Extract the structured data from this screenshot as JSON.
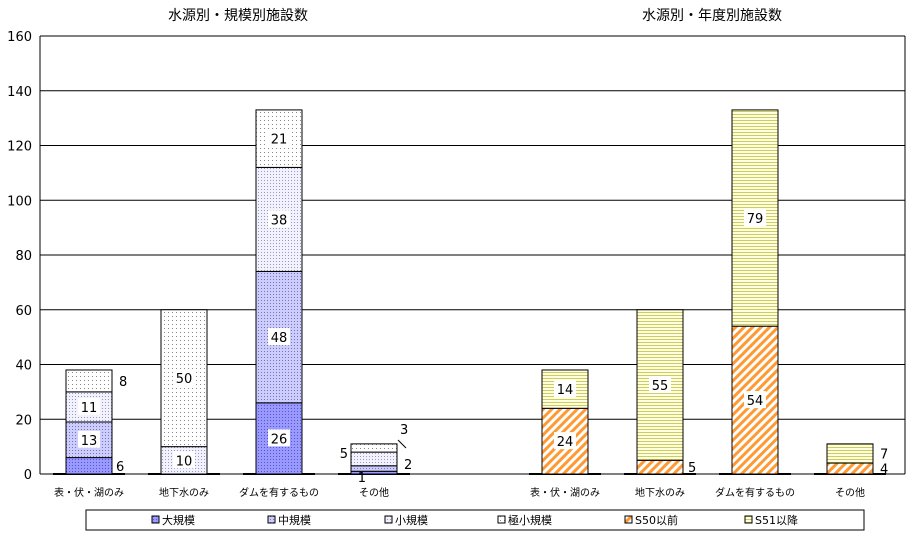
{
  "chart_data": [
    {
      "type": "bar",
      "stacked": true,
      "title": "水源別・規模別施設数",
      "categories": [
        "表・伏・湖のみ",
        "地下水のみ",
        "ダムを有するもの",
        "その他"
      ],
      "series": [
        {
          "name": "大規模",
          "values": [
            6,
            0,
            26,
            1
          ]
        },
        {
          "name": "中規模",
          "values": [
            13,
            0,
            48,
            2
          ]
        },
        {
          "name": "小規模",
          "values": [
            11,
            10,
            38,
            5
          ]
        },
        {
          "name": "極小規模",
          "values": [
            8,
            50,
            21,
            3
          ]
        }
      ],
      "value_labels": [
        [
          "6",
          "",
          "26",
          "1"
        ],
        [
          "13",
          "",
          "48",
          "2"
        ],
        [
          "11",
          "10",
          "38",
          "5"
        ],
        [
          "8",
          "50",
          "21",
          "3"
        ]
      ],
      "ylim": [
        0,
        160
      ],
      "yticks": [
        "0",
        "20",
        "40",
        "60",
        "80",
        "100",
        "120",
        "140",
        "160"
      ],
      "grid": true
    },
    {
      "type": "bar",
      "stacked": true,
      "title": "水源別・年度別施設数",
      "categories": [
        "表・伏・湖のみ",
        "地下水のみ",
        "ダムを有するもの",
        "その他"
      ],
      "series": [
        {
          "name": "S50以前",
          "values": [
            24,
            5,
            54,
            4
          ]
        },
        {
          "name": "S51以降",
          "values": [
            14,
            55,
            79,
            7
          ]
        }
      ],
      "value_labels": [
        [
          "24",
          "5",
          "54",
          "4"
        ],
        [
          "14",
          "55",
          "79",
          "7"
        ]
      ],
      "ylim": [
        0,
        160
      ],
      "grid": true
    }
  ],
  "legend": {
    "placement": "bottom",
    "items": [
      {
        "name": "大規模",
        "color": "#9999ff",
        "pattern": "dense-dots"
      },
      {
        "name": "中規模",
        "color": "#ccccff",
        "pattern": "dots"
      },
      {
        "name": "小規模",
        "color": "#f2f2ff",
        "pattern": "dots"
      },
      {
        "name": "極小規模",
        "color": "#ffffff",
        "pattern": "sparse-dots"
      },
      {
        "name": "S50以前",
        "color": "#ff9933",
        "pattern": "diagonal"
      },
      {
        "name": "S51以降",
        "color": "#ffffcc",
        "pattern": "horizontal-lines"
      }
    ]
  }
}
